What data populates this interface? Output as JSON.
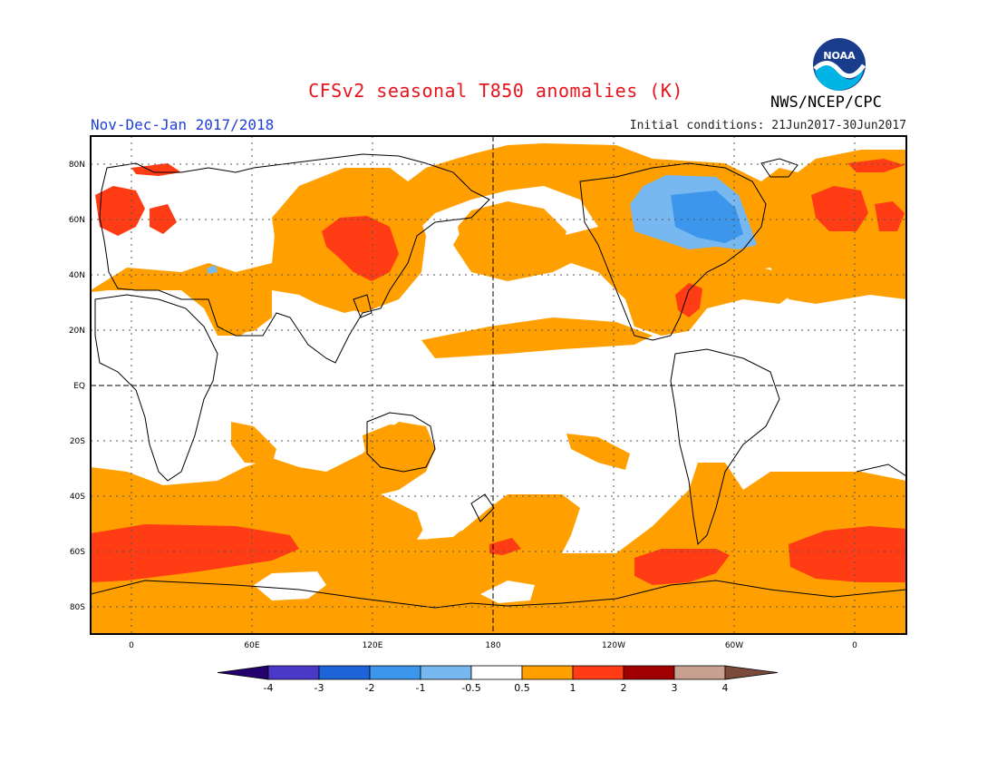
{
  "header": {
    "title": "CFSv2 seasonal T850 anomalies (K)",
    "season": "Nov-Dec-Jan 2017/2018",
    "initial_conditions": "Initial conditions: 21Jun2017-30Jun2017",
    "agency": "NWS/NCEP/CPC",
    "logo_text": "NOAA"
  },
  "map": {
    "lat_labels": [
      "80N",
      "60N",
      "40N",
      "20N",
      "EQ",
      "20S",
      "40S",
      "60S",
      "80S"
    ],
    "lon_labels": [
      "0",
      "60E",
      "120E",
      "180",
      "120W",
      "60W",
      "0"
    ]
  },
  "legend": {
    "labels": [
      "-4",
      "-3",
      "-2",
      "-1",
      "-0.5",
      "0.5",
      "1",
      "2",
      "3",
      "4"
    ],
    "colors": [
      "#24006f",
      "#4a38c8",
      "#1c64d8",
      "#3c96ec",
      "#78b8f0",
      "#ffffff",
      "#ffa000",
      "#ff3c14",
      "#a00000",
      "#c8a090",
      "#7a4a3a"
    ]
  },
  "colors": {
    "warm_1": "#ffa000",
    "warm_2": "#ff3c14",
    "cool_1": "#78b8f0",
    "cool_2": "#3c96ec"
  }
}
